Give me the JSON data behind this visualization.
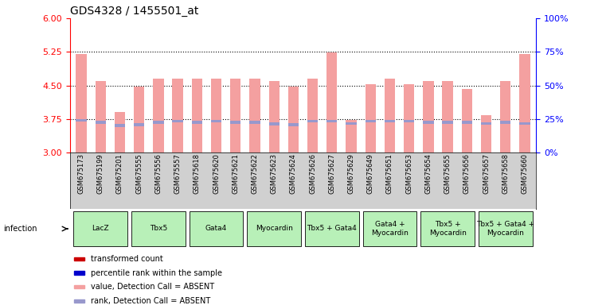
{
  "title": "GDS4328 / 1455501_at",
  "samples": [
    "GSM675173",
    "GSM675199",
    "GSM675201",
    "GSM675555",
    "GSM675556",
    "GSM675557",
    "GSM675618",
    "GSM675620",
    "GSM675621",
    "GSM675622",
    "GSM675623",
    "GSM675624",
    "GSM675626",
    "GSM675627",
    "GSM675629",
    "GSM675649",
    "GSM675651",
    "GSM675653",
    "GSM675654",
    "GSM675655",
    "GSM675656",
    "GSM675657",
    "GSM675658",
    "GSM675660"
  ],
  "red_values": [
    5.2,
    4.6,
    3.9,
    4.47,
    4.65,
    4.65,
    4.65,
    4.65,
    4.65,
    4.65,
    4.6,
    4.47,
    4.65,
    5.23,
    3.73,
    4.52,
    4.65,
    4.52,
    4.6,
    4.6,
    4.42,
    3.83,
    4.6,
    5.2
  ],
  "blue_values": [
    3.72,
    3.67,
    3.6,
    3.62,
    3.67,
    3.7,
    3.67,
    3.7,
    3.68,
    3.67,
    3.64,
    3.62,
    3.7,
    3.7,
    3.65,
    3.7,
    3.7,
    3.7,
    3.68,
    3.68,
    3.68,
    3.65,
    3.67,
    3.65
  ],
  "groups": [
    {
      "label": "LacZ",
      "start": 0,
      "end": 2
    },
    {
      "label": "Tbx5",
      "start": 3,
      "end": 5
    },
    {
      "label": "Gata4",
      "start": 6,
      "end": 8
    },
    {
      "label": "Myocardin",
      "start": 9,
      "end": 11
    },
    {
      "label": "Tbx5 + Gata4",
      "start": 12,
      "end": 14
    },
    {
      "label": "Gata4 +\nMyocardin",
      "start": 15,
      "end": 17
    },
    {
      "label": "Tbx5 +\nMyocardin",
      "start": 18,
      "end": 20
    },
    {
      "label": "Tbx5 + Gata4 +\nMyocardin",
      "start": 21,
      "end": 23
    }
  ],
  "ylim_left": [
    3,
    6
  ],
  "ylim_right": [
    0,
    100
  ],
  "yticks_left": [
    3,
    3.75,
    4.5,
    5.25,
    6
  ],
  "yticks_right": [
    0,
    25,
    50,
    75,
    100
  ],
  "bar_width": 0.55,
  "red_color": "#f4a0a0",
  "blue_color": "#9898cc",
  "group_bg_color": "#b8f0b8",
  "sample_bg_color": "#d0d0d0",
  "legend": [
    {
      "color": "#cc0000",
      "label": "transformed count"
    },
    {
      "color": "#0000cc",
      "label": "percentile rank within the sample"
    },
    {
      "color": "#f4a0a0",
      "label": "value, Detection Call = ABSENT"
    },
    {
      "color": "#9898cc",
      "label": "rank, Detection Call = ABSENT"
    }
  ]
}
